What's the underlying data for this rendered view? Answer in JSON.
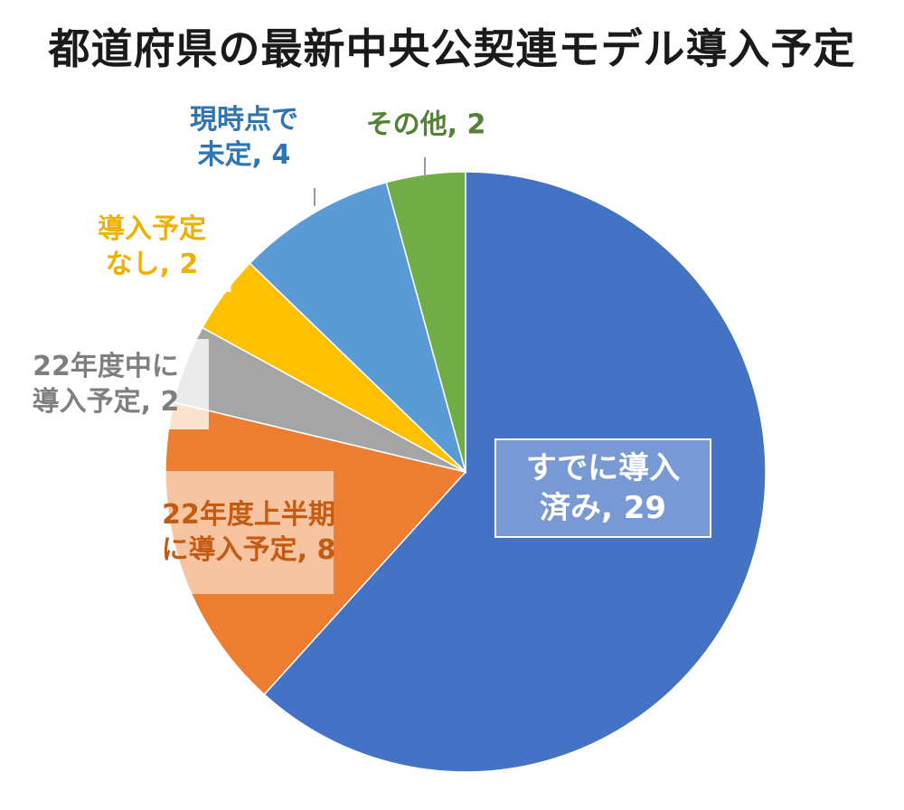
{
  "chart_data": {
    "type": "pie",
    "title": "都道府県の最新中央公契連モデル導入予定",
    "slices": [
      {
        "label_lines": [
          "すでに導入",
          "済み, 29"
        ],
        "value": 29,
        "color": "#4472C4",
        "label_color": "#ffffff"
      },
      {
        "label_lines": [
          "22年度上半期",
          "に導入予定, 8"
        ],
        "value": 8,
        "color": "#ED7D31",
        "label_color": "#C55A11"
      },
      {
        "label_lines": [
          "22年度中に",
          "導入予定, 2"
        ],
        "value": 2,
        "color": "#A5A5A5",
        "label_color": "#7F7F7F"
      },
      {
        "label_lines": [
          "導入予定",
          "なし, 2"
        ],
        "value": 2,
        "color": "#FFC000",
        "label_color": "#F0B000"
      },
      {
        "label_lines": [
          "現時点で",
          "未定, 4"
        ],
        "value": 4,
        "color": "#5B9BD5",
        "label_color": "#2E75B6"
      },
      {
        "label_lines": [
          "その他, 2"
        ],
        "value": 2,
        "color": "#70AD47",
        "label_color": "#548235"
      }
    ]
  }
}
